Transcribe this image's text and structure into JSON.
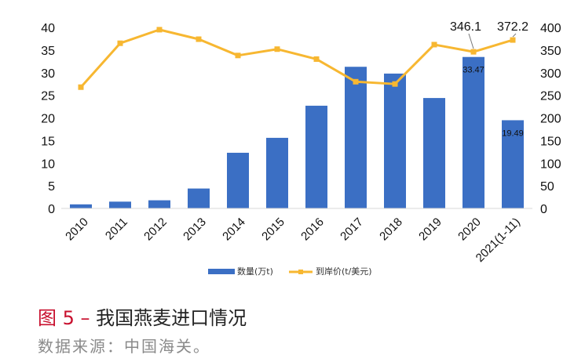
{
  "chart_data": {
    "type": "bar+line",
    "categories": [
      "2010",
      "2011",
      "2012",
      "2013",
      "2014",
      "2015",
      "2016",
      "2017",
      "2018",
      "2019",
      "2020",
      "2021(1-11)"
    ],
    "series": [
      {
        "name": "数量(万t)",
        "type": "bar",
        "axis": "left",
        "values": [
          0.9,
          1.5,
          1.8,
          4.4,
          12.3,
          15.6,
          22.7,
          31.3,
          29.8,
          24.4,
          33.47,
          19.49
        ],
        "color": "#3b6fc4"
      },
      {
        "name": "到岸价(t/美元)",
        "type": "line",
        "axis": "right",
        "values": [
          268,
          365,
          395,
          374,
          338,
          352,
          330,
          280,
          275,
          362,
          346.1,
          372.2
        ],
        "color": "#f7b731"
      }
    ],
    "bar_labels": [
      {
        "index": 10,
        "text": "33.47"
      },
      {
        "index": 11,
        "text": "19.49"
      }
    ],
    "line_labels": [
      {
        "index": 10,
        "text": "346.1"
      },
      {
        "index": 11,
        "text": "372.2"
      }
    ],
    "y_left": {
      "ylim": [
        0,
        40
      ],
      "ticks": [
        "0",
        "5",
        "10",
        "15",
        "20",
        "25",
        "30",
        "35",
        "40"
      ]
    },
    "y_right": {
      "ylim": [
        0,
        400
      ],
      "ticks": [
        "0",
        "50",
        "100",
        "150",
        "200",
        "250",
        "300",
        "350",
        "400"
      ]
    },
    "legend_position": "bottom",
    "grid": false
  },
  "caption": {
    "figure_label": "图 5 –",
    "title": "我国燕麦进口情况"
  },
  "source": "数据来源：中国海关。"
}
